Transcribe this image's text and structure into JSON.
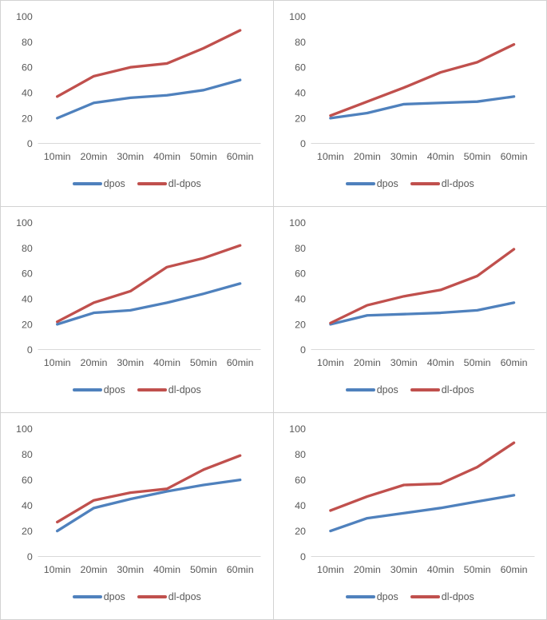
{
  "figure": {
    "background": "#ffffff",
    "panel_border_color": "#d2d2d2",
    "axis_line_color": "#d9d9d9",
    "axis_text_color": "#595959"
  },
  "colors": {
    "dpos": "#4F81BD",
    "dl_dpos": "#C0504D"
  },
  "chart_data": [
    {
      "type": "line",
      "position": "top-left",
      "categories": [
        "10min",
        "20min",
        "30min",
        "40min",
        "50min",
        "60min"
      ],
      "yticks": [
        0,
        20,
        40,
        60,
        80,
        100
      ],
      "ylim": [
        0,
        100
      ],
      "legend_position": "bottom",
      "series": [
        {
          "name": "dpos",
          "color": "#4F81BD",
          "values": [
            20,
            32,
            36,
            38,
            42,
            50
          ]
        },
        {
          "name": "dl-dpos",
          "color": "#C0504D",
          "values": [
            37,
            53,
            60,
            63,
            75,
            89
          ]
        }
      ]
    },
    {
      "type": "line",
      "position": "top-right",
      "categories": [
        "10min",
        "20min",
        "30min",
        "40min",
        "50min",
        "60min"
      ],
      "yticks": [
        0,
        20,
        40,
        60,
        80,
        100
      ],
      "ylim": [
        0,
        100
      ],
      "legend_position": "bottom",
      "series": [
        {
          "name": "dpos",
          "color": "#4F81BD",
          "values": [
            20,
            24,
            31,
            32,
            33,
            37
          ]
        },
        {
          "name": "dl-dpos",
          "color": "#C0504D",
          "values": [
            22,
            33,
            44,
            56,
            64,
            78
          ]
        }
      ]
    },
    {
      "type": "line",
      "position": "middle-left",
      "categories": [
        "10min",
        "20min",
        "30min",
        "40min",
        "50min",
        "60min"
      ],
      "yticks": [
        0,
        20,
        40,
        60,
        80,
        100
      ],
      "ylim": [
        0,
        100
      ],
      "legend_position": "bottom",
      "series": [
        {
          "name": "dpos",
          "color": "#4F81BD",
          "values": [
            20,
            29,
            31,
            37,
            44,
            52
          ]
        },
        {
          "name": "dl-dpos",
          "color": "#C0504D",
          "values": [
            22,
            37,
            46,
            65,
            72,
            82
          ]
        }
      ]
    },
    {
      "type": "line",
      "position": "middle-right",
      "categories": [
        "10min",
        "20min",
        "30min",
        "40min",
        "50min",
        "60min"
      ],
      "yticks": [
        0,
        20,
        40,
        60,
        80,
        100
      ],
      "ylim": [
        0,
        100
      ],
      "legend_position": "bottom",
      "series": [
        {
          "name": "dpos",
          "color": "#4F81BD",
          "values": [
            20,
            27,
            28,
            29,
            31,
            37
          ]
        },
        {
          "name": "dl-dpos",
          "color": "#C0504D",
          "values": [
            21,
            35,
            42,
            47,
            58,
            79
          ]
        }
      ]
    },
    {
      "type": "line",
      "position": "bottom-left",
      "categories": [
        "10min",
        "20min",
        "30min",
        "40min",
        "50min",
        "60min"
      ],
      "yticks": [
        0,
        20,
        40,
        60,
        80,
        100
      ],
      "ylim": [
        0,
        100
      ],
      "legend_position": "bottom",
      "series": [
        {
          "name": "dpos",
          "color": "#4F81BD",
          "values": [
            20,
            38,
            45,
            51,
            56,
            60
          ]
        },
        {
          "name": "dl-dpos",
          "color": "#C0504D",
          "values": [
            27,
            44,
            50,
            53,
            68,
            79
          ]
        }
      ]
    },
    {
      "type": "line",
      "position": "bottom-right",
      "categories": [
        "10min",
        "20min",
        "30min",
        "40min",
        "50min",
        "60min"
      ],
      "yticks": [
        0,
        20,
        40,
        60,
        80,
        100
      ],
      "ylim": [
        0,
        100
      ],
      "legend_position": "bottom",
      "series": [
        {
          "name": "dpos",
          "color": "#4F81BD",
          "values": [
            20,
            30,
            34,
            38,
            43,
            48
          ]
        },
        {
          "name": "dl-dpos",
          "color": "#C0504D",
          "values": [
            36,
            47,
            56,
            57,
            70,
            89
          ]
        }
      ]
    }
  ]
}
